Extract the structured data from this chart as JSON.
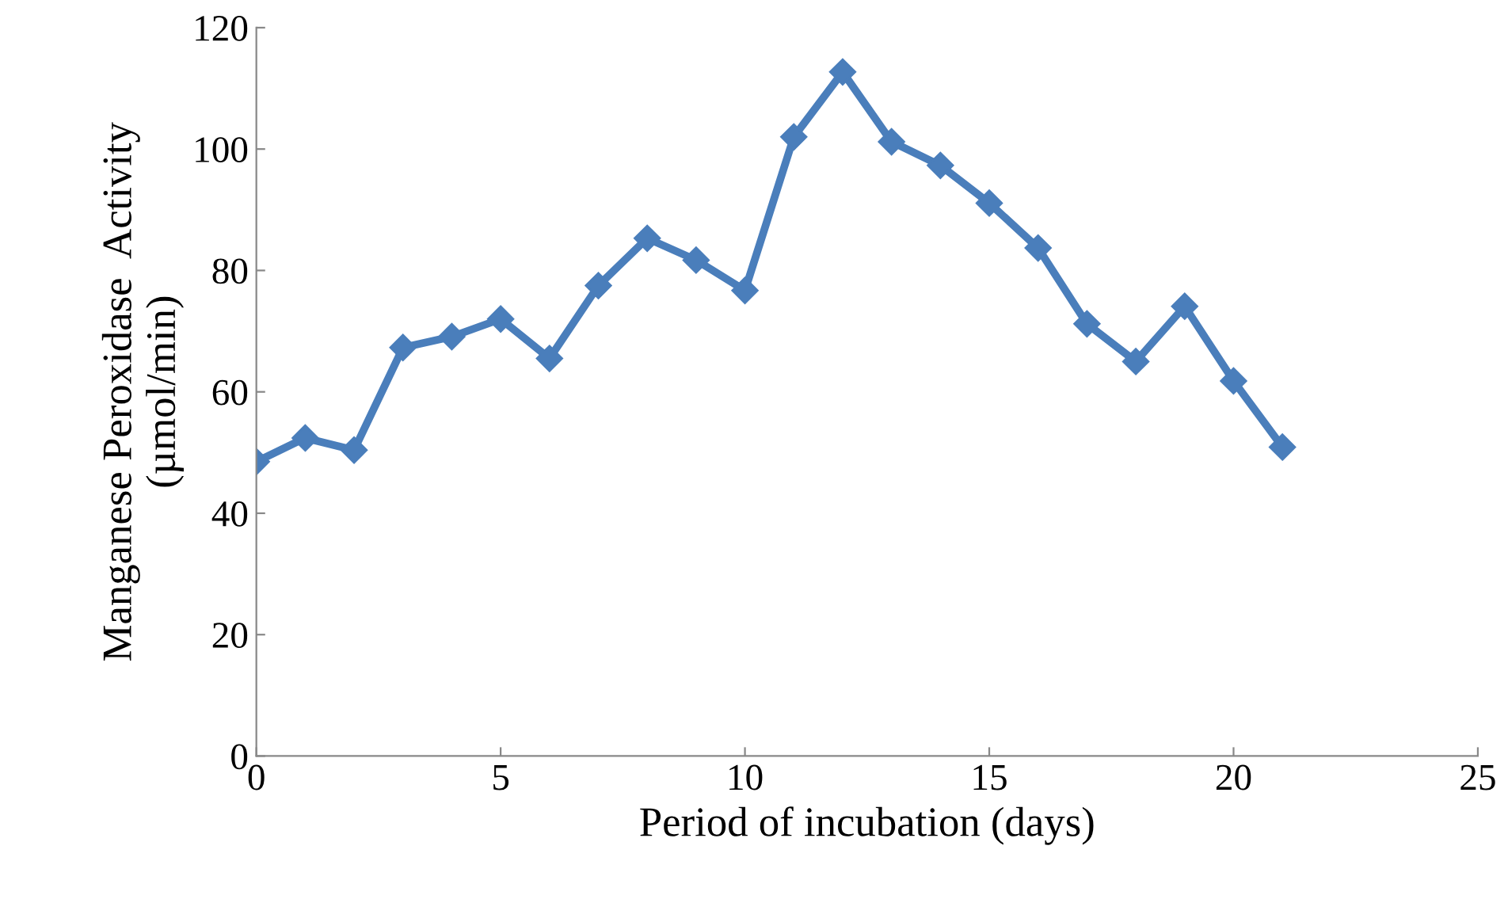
{
  "chart_data": {
    "type": "line",
    "xlabel": "Period of incubation (days)",
    "ylabel": "Manganese Peroxidase  Activity\n(µmol/min)",
    "x": [
      0,
      1,
      2,
      3,
      4,
      5,
      6,
      7,
      8,
      9,
      10,
      11,
      12,
      13,
      14,
      15,
      16,
      17,
      18,
      19,
      20,
      21
    ],
    "series": [
      {
        "color": "#4a7ebb",
        "values": [
          48.5,
          52.4,
          50.4,
          67.3,
          69.1,
          72.0,
          65.5,
          77.5,
          85.3,
          81.7,
          76.7,
          102,
          112.7,
          101.2,
          97.3,
          91.1,
          83.7,
          71.2,
          65.0,
          74.1,
          61.8,
          50.9
        ]
      }
    ],
    "xlim": [
      0,
      25
    ],
    "xticks": [
      0,
      5,
      10,
      15,
      20,
      25
    ],
    "ylim": [
      0,
      120
    ],
    "yticks": [
      0,
      20,
      40,
      60,
      80,
      100,
      120
    ],
    "grid": false,
    "legend": false,
    "marker": "diamond",
    "line_style": "solid"
  }
}
